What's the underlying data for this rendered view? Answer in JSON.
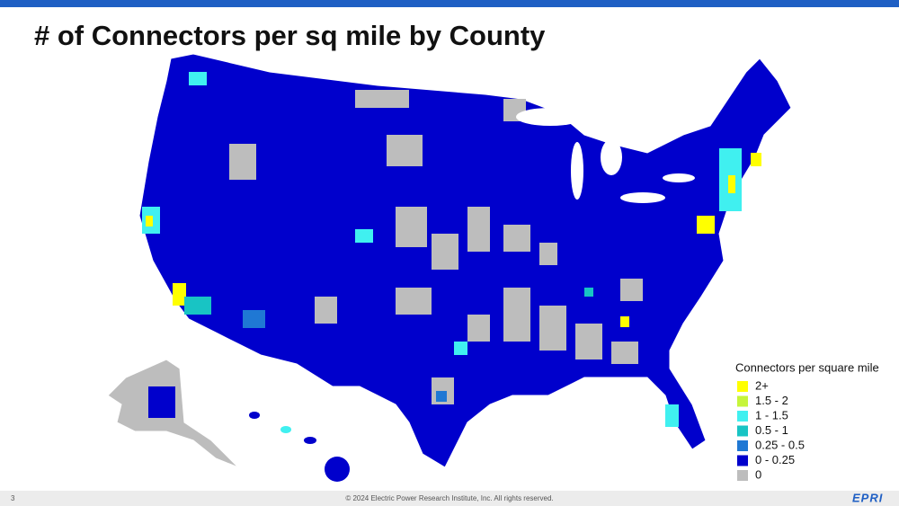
{
  "header": {
    "title": "# of Connectors per sq mile by County"
  },
  "legend": {
    "title": "Connectors per square mile",
    "items": [
      {
        "label": "2+",
        "color": "#ffff00"
      },
      {
        "label": "1.5 - 2",
        "color": "#c6f53a"
      },
      {
        "label": "1 - 1.5",
        "color": "#40f0f0"
      },
      {
        "label": "0.5 - 1",
        "color": "#18c4c4"
      },
      {
        "label": "0.25 - 0.5",
        "color": "#1f78d4"
      },
      {
        "label": "0 - 0.25",
        "color": "#0000cc"
      },
      {
        "label": "0",
        "color": "#bdbdbd"
      }
    ]
  },
  "footer": {
    "page": "3",
    "copyright": "© 2024 Electric Power Research Institute, Inc. All rights reserved.",
    "logo": "EPRI"
  }
}
